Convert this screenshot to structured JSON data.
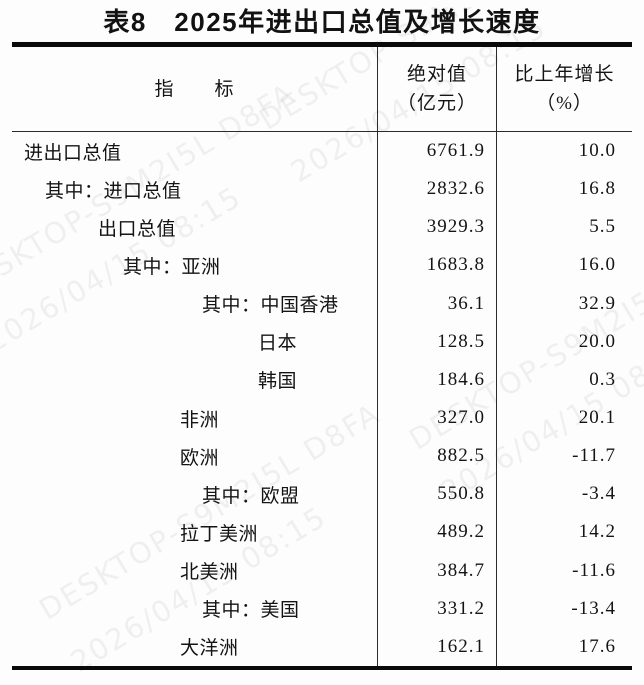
{
  "title": "表8　2025年进出口总值及增长速度",
  "watermark": {
    "device": "DESKTOP-S9M2I5L D8FA",
    "timestamp": "2026/04/15 08:15"
  },
  "table": {
    "columns": {
      "indicator": "指　　标",
      "absolute_line1": "绝对值",
      "absolute_line2": "（亿元）",
      "growth_line1": "比上年增长",
      "growth_line2": "（%）"
    },
    "rows": [
      {
        "indicator": "进出口总值",
        "level": 0,
        "absolute": "6761.9",
        "growth": "10.0"
      },
      {
        "indicator": "其中：进口总值",
        "level": 1,
        "absolute": "2832.6",
        "growth": "16.8"
      },
      {
        "indicator": "出口总值",
        "level": 2,
        "absolute": "3929.3",
        "growth": "5.5"
      },
      {
        "indicator": "其中：亚洲",
        "level": 3,
        "absolute": "1683.8",
        "growth": "16.0"
      },
      {
        "indicator": "其中：中国香港",
        "level": 5,
        "absolute": "36.1",
        "growth": "32.9"
      },
      {
        "indicator": "日本",
        "level": 6,
        "absolute": "128.5",
        "growth": "20.0"
      },
      {
        "indicator": "韩国",
        "level": 6,
        "absolute": "184.6",
        "growth": "0.3"
      },
      {
        "indicator": "非洲",
        "level": 4,
        "absolute": "327.0",
        "growth": "20.1"
      },
      {
        "indicator": "欧洲",
        "level": 4,
        "absolute": "882.5",
        "growth": "-11.7"
      },
      {
        "indicator": "其中：欧盟",
        "level": 5,
        "absolute": "550.8",
        "growth": "-3.4"
      },
      {
        "indicator": "拉丁美洲",
        "level": 4,
        "absolute": "489.2",
        "growth": "14.2"
      },
      {
        "indicator": "北美洲",
        "level": 4,
        "absolute": "384.7",
        "growth": "-11.6"
      },
      {
        "indicator": "其中：美国",
        "level": 5,
        "absolute": "331.2",
        "growth": "-13.4"
      },
      {
        "indicator": "大洋洲",
        "level": 4,
        "absolute": "162.1",
        "growth": "17.6"
      }
    ]
  }
}
